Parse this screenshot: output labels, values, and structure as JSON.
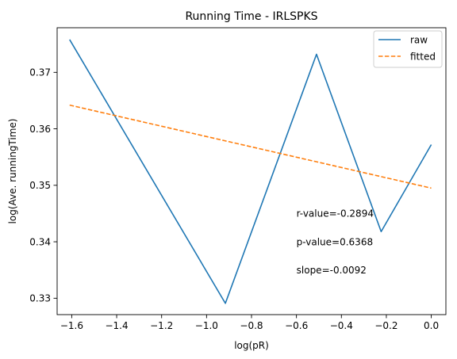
{
  "chart_data": {
    "type": "line",
    "title": "Running Time - IRLSPKS",
    "xlabel": "log(pR)",
    "ylabel": "log(Ave. runningTime)",
    "xlim": [
      -1.665,
      0.065
    ],
    "ylim": [
      0.3271,
      0.3779
    ],
    "xticks": [
      -1.6,
      -1.4,
      -1.2,
      -1.0,
      -0.8,
      -0.6,
      -0.4,
      -0.2,
      0.0
    ],
    "xtick_labels": [
      "−1.6",
      "−1.4",
      "−1.2",
      "−1.0",
      "−0.8",
      "−0.6",
      "−0.4",
      "−0.2",
      "0.0"
    ],
    "yticks": [
      0.33,
      0.34,
      0.35,
      0.36,
      0.37
    ],
    "ytick_labels": [
      "0.33",
      "0.34",
      "0.35",
      "0.36",
      "0.37"
    ],
    "grid": false,
    "legend_position": "top-right",
    "series": [
      {
        "name": "raw",
        "color": "#1f77b4",
        "style": "solid",
        "x": [
          -1.6094,
          -0.9163,
          -0.5108,
          -0.2231,
          0.0
        ],
        "y": [
          0.3758,
          0.3291,
          0.3732,
          0.3418,
          0.3572
        ]
      },
      {
        "name": "fitted",
        "color": "#ff7f0e",
        "style": "dashed",
        "x": [
          -1.6094,
          0.0
        ],
        "y": [
          0.3642,
          0.3495
        ]
      }
    ],
    "annotations": [
      {
        "text": "r-value=-0.2894",
        "x": -0.6,
        "y": 0.345
      },
      {
        "text": "p-value=0.6368",
        "x": -0.6,
        "y": 0.34
      },
      {
        "text": "slope=-0.0092",
        "x": -0.6,
        "y": 0.335
      }
    ]
  }
}
